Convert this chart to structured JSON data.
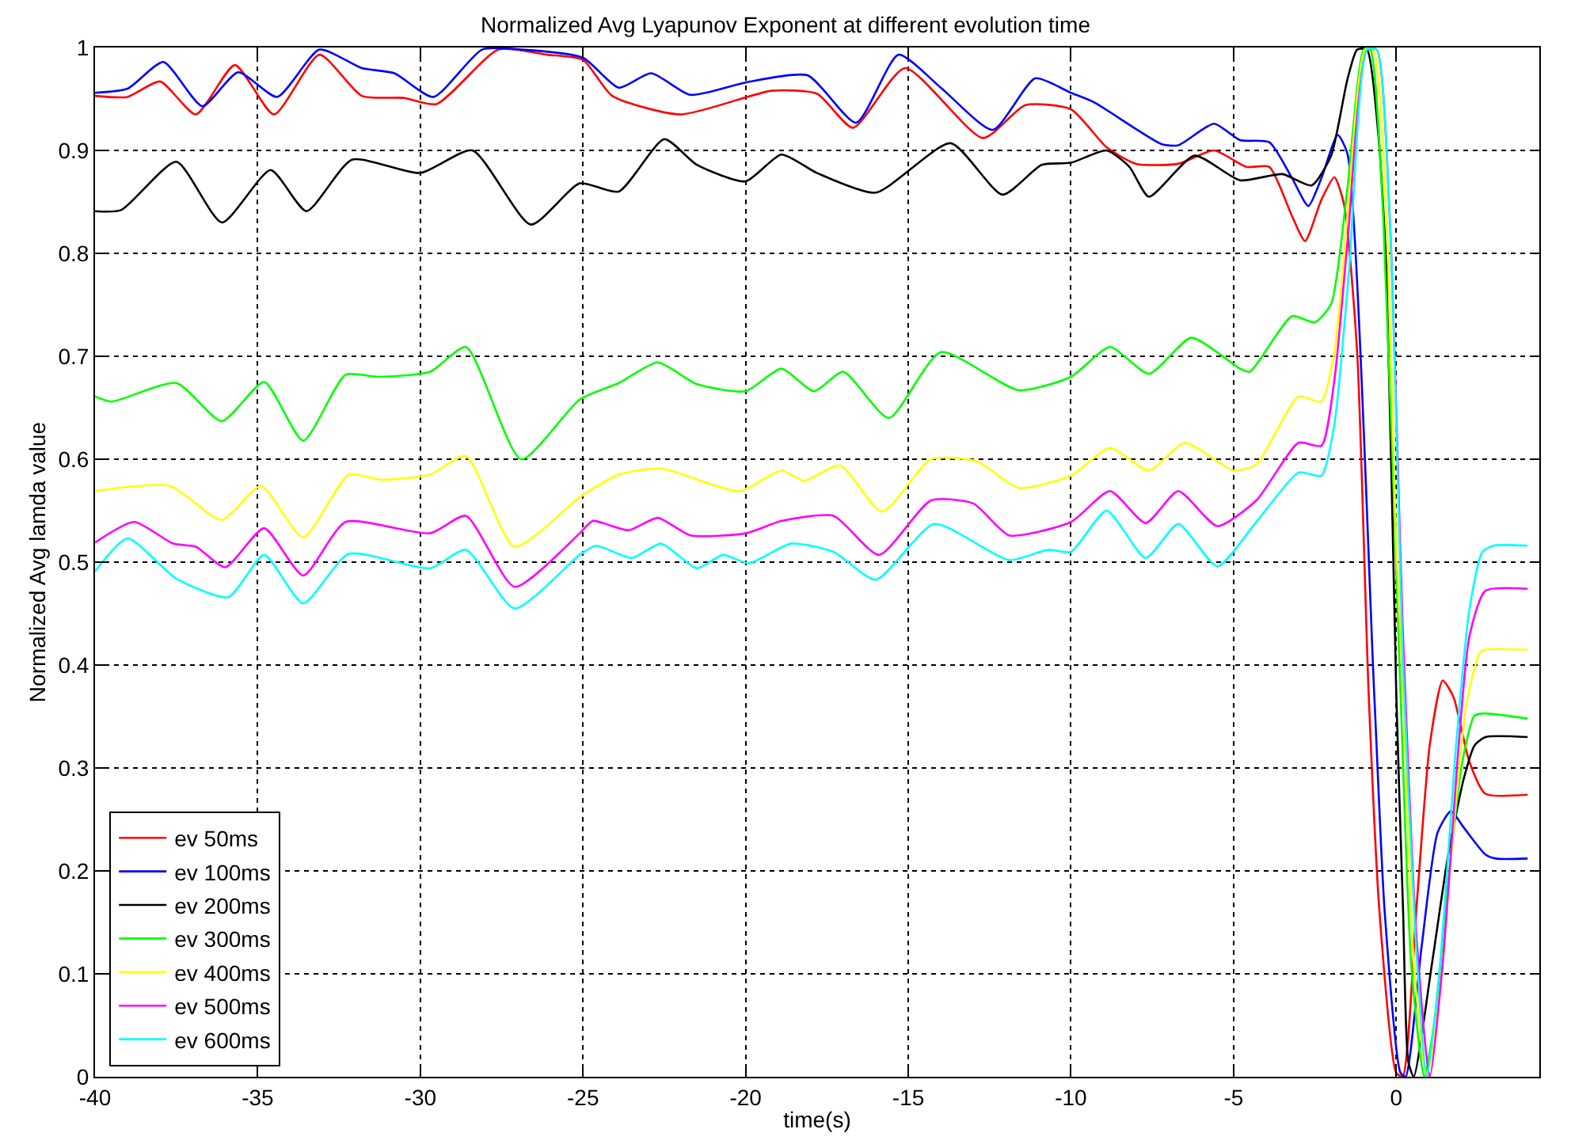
{
  "chart_data": {
    "type": "line",
    "title": "Normalized Avg Lyapunov Exponent at different evolution time",
    "xlabel": "time(s)",
    "ylabel": "Normalized Avg lamda value",
    "xlim": [
      -40,
      4.4
    ],
    "xticks": [
      -40,
      -35,
      -30,
      -25,
      -20,
      -15,
      -10,
      -5,
      0
    ],
    "ylim": [
      0,
      1
    ],
    "yticks": [
      0,
      0.1,
      0.2,
      0.3,
      0.4,
      0.5,
      0.6,
      0.7,
      0.8,
      0.9,
      1
    ],
    "grid": true,
    "legend": "bottom left",
    "marker": "none",
    "line_style": "solid",
    "series": [
      {
        "name": "ev 50ms",
        "color": "#ff0000",
        "x": [
          -40,
          -39,
          -38,
          -36.9,
          -35.7,
          -34.5,
          -33.1,
          -31.8,
          -30.5,
          -29.5,
          -27.6,
          -26.1,
          -25,
          -24.1,
          -22,
          -19.2,
          -17.8,
          -16.7,
          -15.1,
          -12.7,
          -11.4,
          -10,
          -8.9,
          -8,
          -6.7,
          -5.6,
          -4.6,
          -3.9,
          -3.2,
          -2.8,
          -2.3,
          -1.9,
          -1.6,
          -1.2,
          -0.85,
          -0.52,
          0,
          0.2,
          0.62,
          1.03,
          1.43,
          1.76,
          2.25,
          2.74,
          4.04
        ],
        "values": [
          0.953,
          0.952,
          0.967,
          0.935,
          0.983,
          0.935,
          0.993,
          0.953,
          0.951,
          0.945,
          0.998,
          0.993,
          0.988,
          0.953,
          0.935,
          0.958,
          0.955,
          0.922,
          0.98,
          0.912,
          0.944,
          0.94,
          0.903,
          0.887,
          0.887,
          0.9,
          0.884,
          0.884,
          0.836,
          0.812,
          0.852,
          0.874,
          0.847,
          0.704,
          0.375,
          0.163,
          0.004,
          0,
          0.163,
          0.322,
          0.385,
          0.369,
          0.306,
          0.275,
          0.274
        ]
      },
      {
        "name": "ev 100ms",
        "color": "#0000ff",
        "x": [
          -40,
          -39,
          -37.9,
          -36.7,
          -35.6,
          -34.4,
          -33.1,
          -31.8,
          -30.8,
          -29.6,
          -28.1,
          -26.9,
          -25,
          -23.9,
          -22.9,
          -21.7,
          -20,
          -18.1,
          -16.6,
          -15.3,
          -14,
          -12.4,
          -11.1,
          -10,
          -9.3,
          -7.2,
          -6.7,
          -5.6,
          -4.8,
          -3.9,
          -3.2,
          -2.7,
          -2.3,
          -1.8,
          -1.5,
          -0.68,
          -0.36,
          0.13,
          0.29,
          0.78,
          1.27,
          1.68,
          2.08,
          2.74,
          3.06,
          4.04
        ],
        "values": [
          0.956,
          0.96,
          0.986,
          0.943,
          0.976,
          0.952,
          0.998,
          0.98,
          0.975,
          0.952,
          0.998,
          0.998,
          0.99,
          0.961,
          0.975,
          0.954,
          0.966,
          0.973,
          0.927,
          0.993,
          0.961,
          0.92,
          0.97,
          0.956,
          0.947,
          0.906,
          0.905,
          0.926,
          0.91,
          0.908,
          0.873,
          0.846,
          0.873,
          0.915,
          0.897,
          0.375,
          0.163,
          0.004,
          0,
          0.126,
          0.237,
          0.258,
          0.242,
          0.216,
          0.212,
          0.212
        ]
      },
      {
        "name": "ev 200ms",
        "color": "#000000",
        "x": [
          -40,
          -39.2,
          -37.5,
          -36.1,
          -34.6,
          -33.5,
          -32.1,
          -30,
          -28.4,
          -26.6,
          -25.1,
          -23.9,
          -22.5,
          -21.5,
          -20,
          -18.9,
          -17.8,
          -16,
          -13.7,
          -12.1,
          -10.9,
          -10,
          -8.9,
          -8.2,
          -7.6,
          -6.2,
          -4.8,
          -3.5,
          -2.6,
          -2,
          -1.5,
          -1.2,
          -0.9,
          -0.55,
          -0.3,
          0,
          0.21,
          0.37,
          0.54,
          1.1,
          1.6,
          2.08,
          2.41,
          2.74,
          4.04
        ],
        "values": [
          0.841,
          0.842,
          0.889,
          0.83,
          0.881,
          0.841,
          0.891,
          0.878,
          0.9,
          0.828,
          0.868,
          0.86,
          0.911,
          0.886,
          0.87,
          0.896,
          0.878,
          0.859,
          0.907,
          0.857,
          0.886,
          0.888,
          0.9,
          0.884,
          0.855,
          0.895,
          0.871,
          0.877,
          0.866,
          0.895,
          0.969,
          0.998,
          0.998,
          0.916,
          0.783,
          0.375,
          0.163,
          0.015,
          0,
          0.11,
          0.216,
          0.29,
          0.322,
          0.33,
          0.33
        ]
      },
      {
        "name": "ev 300ms",
        "color": "#00ff00",
        "x": [
          -40,
          -39.5,
          -37.5,
          -36.1,
          -34.8,
          -33.6,
          -32.3,
          -31.3,
          -29.7,
          -28.6,
          -26.9,
          -25.1,
          -23.9,
          -22.7,
          -21.5,
          -20,
          -18.9,
          -17.9,
          -17,
          -15.6,
          -14,
          -11.6,
          -10,
          -8.8,
          -7.6,
          -6.3,
          -4.8,
          -4.5,
          -3.2,
          -2.5,
          -2,
          -1.5,
          -1,
          -0.8,
          -0.4,
          0.13,
          0.46,
          0.86,
          1.19,
          1.6,
          2,
          2.41,
          2.74,
          4.04
        ],
        "values": [
          0.661,
          0.656,
          0.674,
          0.637,
          0.675,
          0.618,
          0.682,
          0.68,
          0.685,
          0.709,
          0.6,
          0.658,
          0.674,
          0.694,
          0.673,
          0.666,
          0.688,
          0.666,
          0.685,
          0.64,
          0.704,
          0.667,
          0.68,
          0.709,
          0.683,
          0.718,
          0.688,
          0.685,
          0.739,
          0.733,
          0.751,
          0.863,
          0.998,
          0.998,
          0.836,
          0.375,
          0.11,
          0,
          0.057,
          0.189,
          0.3,
          0.351,
          0.353,
          0.348
        ]
      },
      {
        "name": "ev 400ms",
        "color": "#ffff00",
        "x": [
          -40,
          -37.7,
          -36.1,
          -34.9,
          -33.6,
          -32.2,
          -31.2,
          -29.7,
          -28.6,
          -27.1,
          -25.1,
          -23.9,
          -22.6,
          -20.2,
          -18.9,
          -18.2,
          -17.1,
          -15.8,
          -14.3,
          -12.9,
          -11.6,
          -10,
          -8.8,
          -7.6,
          -6.5,
          -5,
          -4.3,
          -3,
          -2.3,
          -1.9,
          -1.5,
          -0.96,
          -0.7,
          -0.3,
          0,
          0.21,
          0.54,
          0.94,
          1.35,
          1.76,
          2.17,
          2.57,
          2.74,
          4.04
        ],
        "values": [
          0.569,
          0.574,
          0.541,
          0.574,
          0.524,
          0.585,
          0.58,
          0.585,
          0.603,
          0.515,
          0.563,
          0.585,
          0.591,
          0.569,
          0.589,
          0.579,
          0.594,
          0.549,
          0.6,
          0.598,
          0.572,
          0.584,
          0.611,
          0.589,
          0.616,
          0.589,
          0.595,
          0.661,
          0.656,
          0.704,
          0.836,
          0.998,
          0.998,
          0.836,
          0.518,
          0.375,
          0.11,
          0,
          0.084,
          0.242,
          0.364,
          0.412,
          0.415,
          0.415
        ]
      },
      {
        "name": "ev 500ms",
        "color": "#ff00ff",
        "x": [
          -40,
          -38.8,
          -37.6,
          -36.9,
          -36,
          -34.8,
          -33.6,
          -32.3,
          -29.7,
          -28.6,
          -27.1,
          -25.1,
          -24.7,
          -23.6,
          -22.7,
          -21.7,
          -20,
          -18.9,
          -17.3,
          -15.9,
          -14.3,
          -13,
          -11.9,
          -10,
          -8.8,
          -7.7,
          -6.7,
          -5.5,
          -4.3,
          -3,
          -2.3,
          -1.9,
          -1.5,
          -0.9,
          -0.6,
          -0.2,
          0.21,
          0.62,
          1.03,
          1.43,
          1.92,
          2.25,
          2.74,
          4.04
        ],
        "values": [
          0.519,
          0.539,
          0.518,
          0.515,
          0.495,
          0.533,
          0.487,
          0.539,
          0.528,
          0.545,
          0.476,
          0.528,
          0.54,
          0.531,
          0.543,
          0.526,
          0.528,
          0.54,
          0.545,
          0.507,
          0.56,
          0.557,
          0.526,
          0.539,
          0.569,
          0.538,
          0.569,
          0.535,
          0.56,
          0.616,
          0.613,
          0.677,
          0.81,
          0.998,
          0.998,
          0.836,
          0.428,
          0.137,
          0,
          0.11,
          0.322,
          0.428,
          0.472,
          0.474
        ]
      },
      {
        "name": "ev 600ms",
        "color": "#00ffff",
        "x": [
          -40,
          -39,
          -37.5,
          -35.9,
          -34.8,
          -33.6,
          -32.2,
          -29.7,
          -28.6,
          -27.1,
          -25.1,
          -24.6,
          -23.5,
          -22.6,
          -21.5,
          -20.7,
          -19.9,
          -18.6,
          -17.3,
          -16,
          -14.2,
          -11.9,
          -10.7,
          -10,
          -8.9,
          -7.7,
          -6.7,
          -5.5,
          -4.3,
          -3,
          -2.3,
          -1.9,
          -1.45,
          -0.9,
          -0.6,
          -0.2,
          0.21,
          0.59,
          0.94,
          1.35,
          1.84,
          2.25,
          2.65,
          2.98,
          4.04
        ],
        "values": [
          0.491,
          0.523,
          0.484,
          0.466,
          0.507,
          0.46,
          0.508,
          0.494,
          0.512,
          0.455,
          0.507,
          0.516,
          0.504,
          0.518,
          0.494,
          0.507,
          0.499,
          0.518,
          0.51,
          0.483,
          0.537,
          0.502,
          0.512,
          0.51,
          0.55,
          0.504,
          0.537,
          0.496,
          0.539,
          0.587,
          0.584,
          0.634,
          0.783,
          0.998,
          0.998,
          0.836,
          0.401,
          0.137,
          0,
          0.11,
          0.322,
          0.454,
          0.51,
          0.516,
          0.516
        ]
      }
    ]
  }
}
